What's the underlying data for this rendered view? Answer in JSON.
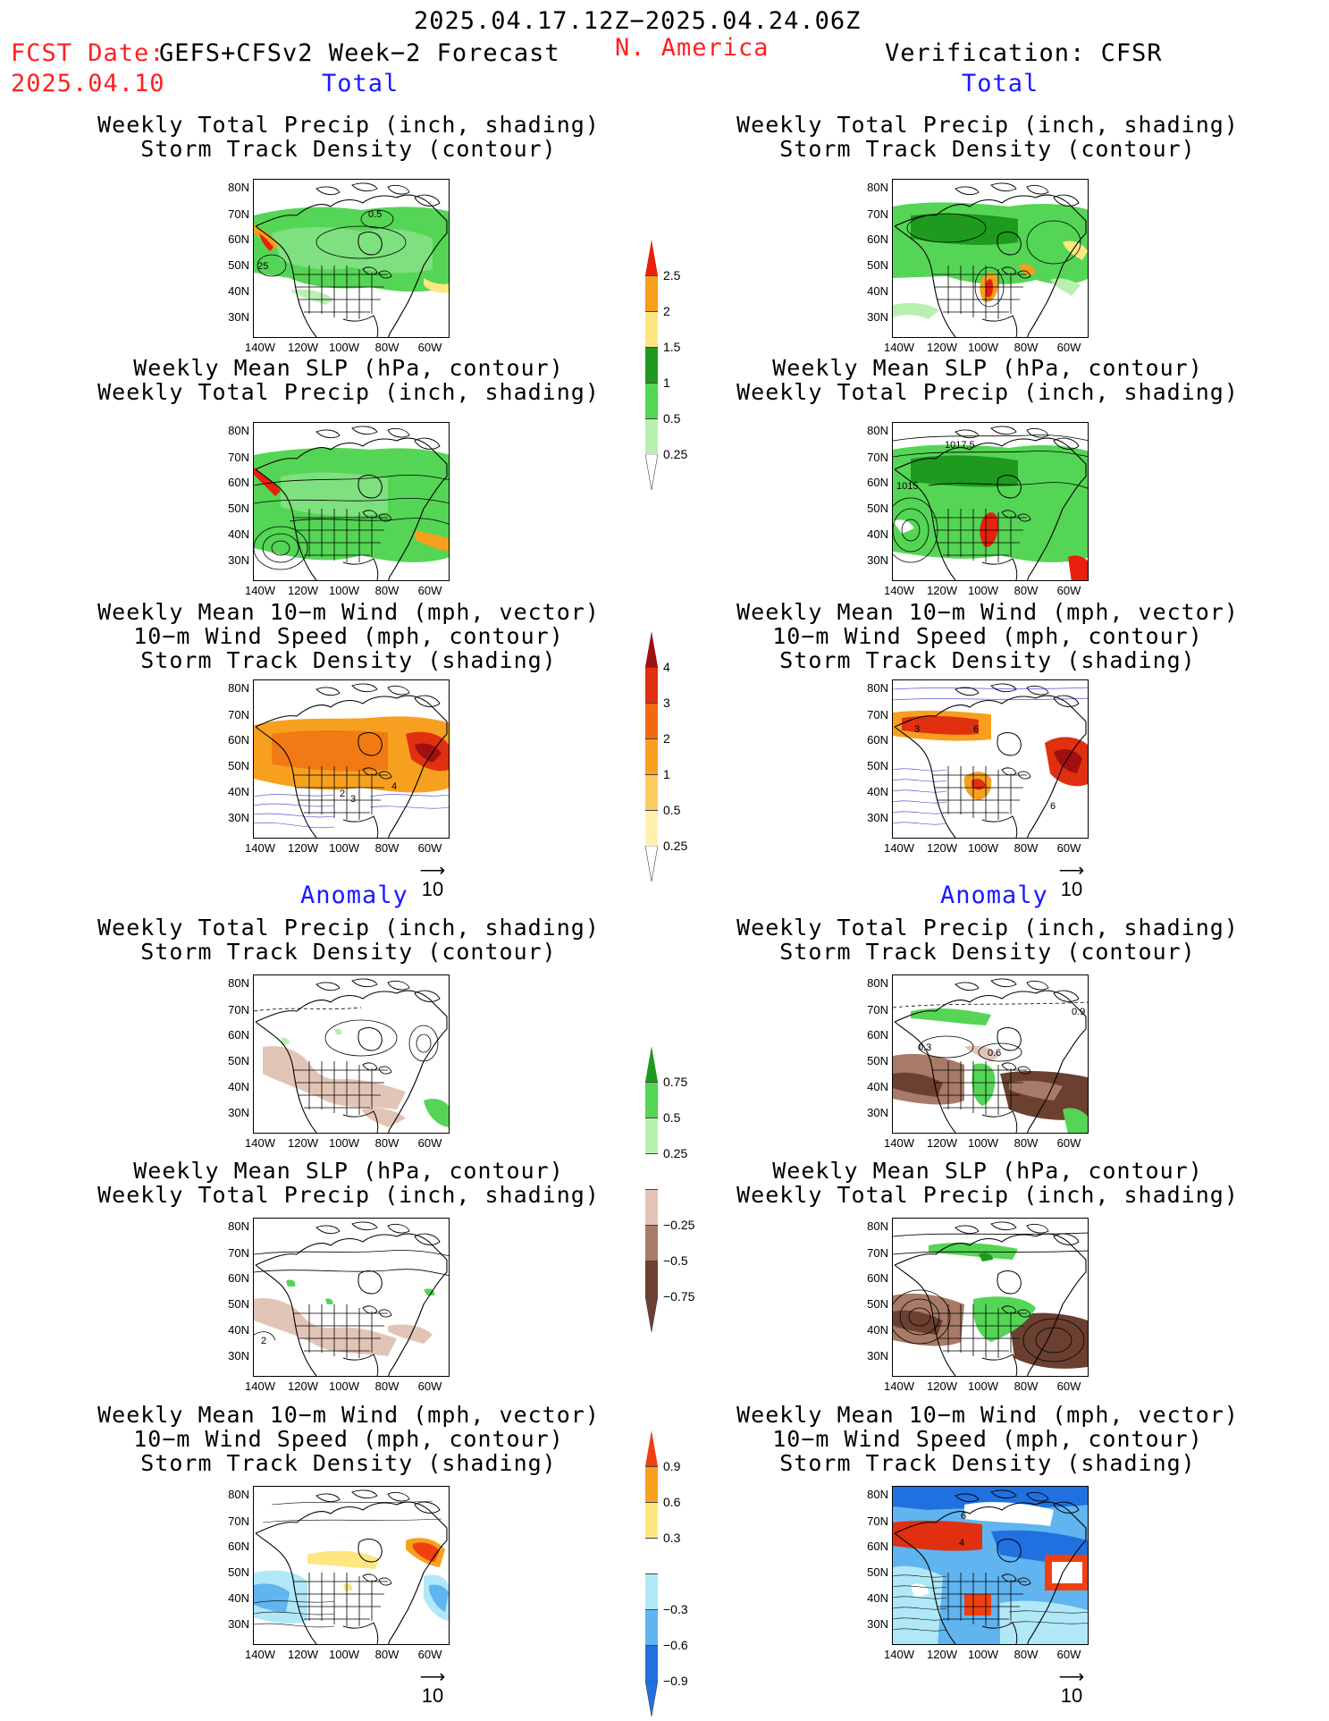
{
  "header": {
    "period": "2025.04.17.12Z−2025.04.24.06Z",
    "fcst_label": "FCST Date:",
    "fcst_date": "2025.04.10",
    "model": "GEFS+CFSv2 Week−2 Forecast",
    "region": "N. America",
    "verification": "Verification: CFSR"
  },
  "sections": {
    "total": "Total",
    "anomaly": "Anomaly"
  },
  "panel_titles": {
    "precip_storm": "Weekly Total Precip (inch, shading)\nStorm Track Density (contour)",
    "slp_precip": "Weekly Mean SLP (hPa, contour)\nWeekly Total Precip (inch, shading)",
    "wind_storm": "Weekly Mean 10−m Wind (mph, vector)\n10−m Wind Speed (mph, contour)\nStorm Track Density (shading)"
  },
  "axes": {
    "lat_ticks": [
      "80N",
      "70N",
      "60N",
      "50N",
      "40N",
      "30N"
    ],
    "lon_ticks": [
      "140W",
      "120W",
      "100W",
      "80W",
      "60W"
    ]
  },
  "vector_ref": "10",
  "panel_labels": {
    "fcst_total_precip": [
      "0.5",
      "25"
    ],
    "cfsr_total_slp": [
      "1017.5",
      "1015"
    ],
    "fcst_total_wind": [
      "2",
      "3",
      "4"
    ],
    "cfsr_total_wind": [
      "3",
      "6",
      "6"
    ],
    "cfsr_anom_precip": [
      "0.3",
      "0.6",
      "0.9"
    ],
    "fcst_anom_slp": [
      "2"
    ],
    "cfsr_anom_wind": [
      "4",
      "6"
    ]
  },
  "colorbars": [
    {
      "id": "total-precip",
      "labels": [
        "2.5",
        "2",
        "1.5",
        "1",
        "0.5",
        "0.25"
      ],
      "colors": [
        "#e8200d",
        "#f59f1a",
        "#ffe680",
        "#1e9a1e",
        "#55d555",
        "#b8f0b0"
      ]
    },
    {
      "id": "total-storm-density",
      "labels": [
        "4",
        "3",
        "2",
        "1",
        "0.5",
        "0.25"
      ],
      "colors": [
        "#a01010",
        "#e03010",
        "#f06a10",
        "#f7a020",
        "#fccc60",
        "#fff2b0"
      ]
    },
    {
      "id": "anom-precip",
      "labels": [
        "0.75",
        "0.5",
        "0.25",
        "−0.25",
        "−0.5",
        "−0.75"
      ],
      "colors": [
        "#1e9a1e",
        "#55d555",
        "#b8f0b0",
        "#ffffff",
        "#e2c4b6",
        "#a87a68",
        "#6b4030"
      ]
    },
    {
      "id": "anom-storm-density",
      "labels": [
        "0.9",
        "0.6",
        "0.3",
        "−0.3",
        "−0.6",
        "−0.9"
      ],
      "colors": [
        "#f04010",
        "#f7a020",
        "#ffe680",
        "#ffffff",
        "#b0e8f8",
        "#60b4f0",
        "#2070e0"
      ]
    }
  ],
  "colors": {
    "title_red": "#ff2020",
    "section_blue": "#1a1aff"
  }
}
